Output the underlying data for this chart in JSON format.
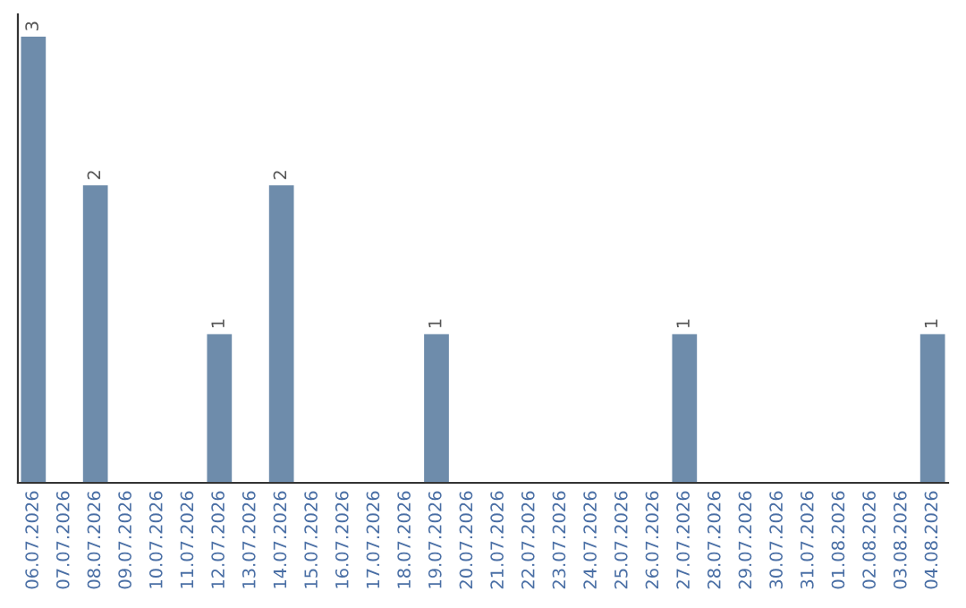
{
  "chart_data": {
    "type": "bar",
    "categories": [
      "06.07.2026",
      "07.07.2026",
      "08.07.2026",
      "09.07.2026",
      "10.07.2026",
      "11.07.2026",
      "12.07.2026",
      "13.07.2026",
      "14.07.2026",
      "15.07.2026",
      "16.07.2026",
      "17.07.2026",
      "18.07.2026",
      "19.07.2026",
      "20.07.2026",
      "21.07.2026",
      "22.07.2026",
      "23.07.2026",
      "24.07.2026",
      "25.07.2026",
      "26.07.2026",
      "27.07.2026",
      "28.07.2026",
      "29.07.2026",
      "30.07.2026",
      "31.07.2026",
      "01.08.2026",
      "02.08.2026",
      "03.08.2026",
      "04.08.2026"
    ],
    "values": [
      3,
      0,
      2,
      0,
      0,
      0,
      1,
      0,
      2,
      0,
      0,
      0,
      0,
      1,
      0,
      0,
      0,
      0,
      0,
      0,
      0,
      1,
      0,
      0,
      0,
      0,
      0,
      0,
      0,
      1
    ],
    "value_labels": [
      "3",
      null,
      "2",
      null,
      null,
      null,
      "1",
      null,
      "2",
      null,
      null,
      null,
      null,
      "1",
      null,
      null,
      null,
      null,
      null,
      null,
      null,
      "1",
      null,
      null,
      null,
      null,
      null,
      null,
      null,
      "1"
    ],
    "color": "#6e8cab",
    "grid": false,
    "legend": false
  }
}
